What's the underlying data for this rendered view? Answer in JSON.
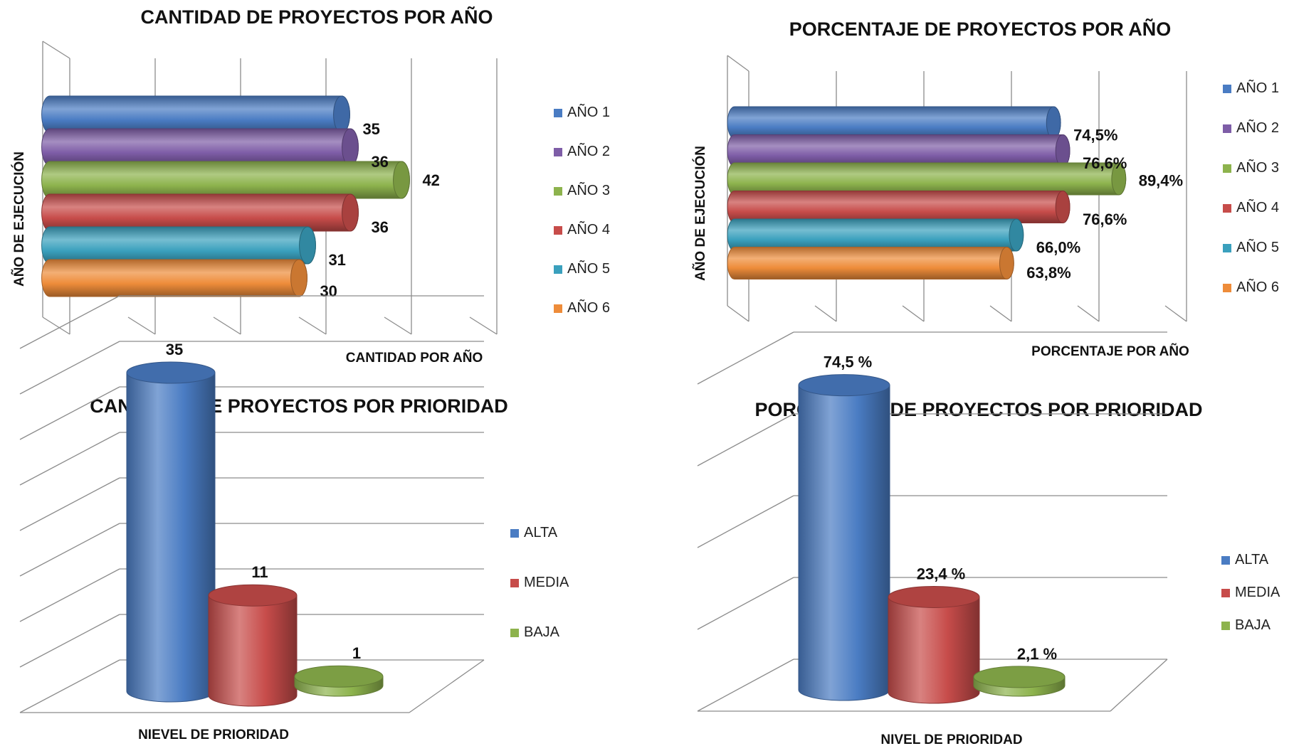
{
  "colors": {
    "blue": "#4a7cc3",
    "purple": "#7e5da7",
    "green": "#8db34d",
    "red": "#c74c4a",
    "teal": "#3aa0bd",
    "orange": "#ee8c3a"
  },
  "chart_data": [
    {
      "type": "bar",
      "orientation": "horizontal",
      "title": "CANTIDAD DE PROYECTOS POR AÑO",
      "xlabel": "CANTIDAD POR AÑO",
      "ylabel": "AÑO DE EJECUCIÓN",
      "categories": [
        "AÑO 1",
        "AÑO 2",
        "AÑO 3",
        "AÑO 4",
        "AÑO 5",
        "AÑO 6"
      ],
      "values": [
        35,
        36,
        42,
        36,
        31,
        30
      ],
      "labels": [
        "35",
        "36",
        "42",
        "36",
        "31",
        "30"
      ],
      "colors": [
        "#4a7cc3",
        "#7e5da7",
        "#8db34d",
        "#c74c4a",
        "#3aa0bd",
        "#ee8c3a"
      ],
      "xlim": [
        0,
        50
      ],
      "legend": "right",
      "grid": true
    },
    {
      "type": "bar",
      "orientation": "horizontal",
      "title": "PORCENTAJE DE PROYECTOS POR AÑO",
      "xlabel": "PORCENTAJE POR AÑO",
      "ylabel": "AÑO DE EJECUCIÓN",
      "categories": [
        "AÑO 1",
        "AÑO 2",
        "AÑO 3",
        "AÑO 4",
        "AÑO 5",
        "AÑO 6"
      ],
      "values": [
        74.5,
        76.6,
        89.4,
        76.6,
        66.0,
        63.8
      ],
      "labels": [
        "74,5%",
        "76,6%",
        "89,4%",
        "76,6%",
        "66,0%",
        "63,8%"
      ],
      "colors": [
        "#4a7cc3",
        "#7e5da7",
        "#8db34d",
        "#c74c4a",
        "#3aa0bd",
        "#ee8c3a"
      ],
      "xlim": [
        0,
        100
      ],
      "legend": "right",
      "grid": true
    },
    {
      "type": "bar",
      "orientation": "vertical",
      "title": "CANTIDAD DE PROYECTOS POR PRIORIDAD",
      "xlabel": "NIEVEL DE PRIORIDAD",
      "ylabel": "",
      "categories": [
        "ALTA",
        "MEDIA",
        "BAJA"
      ],
      "values": [
        35,
        11,
        1
      ],
      "labels": [
        "35",
        "11",
        "1"
      ],
      "colors": [
        "#4a7cc3",
        "#c74c4a",
        "#8db34d"
      ],
      "ylim": [
        0,
        40
      ],
      "legend": "right",
      "grid": true
    },
    {
      "type": "bar",
      "orientation": "vertical",
      "title": "PORCENTAJE DE PROYECTOS POR PRIORIDAD",
      "xlabel": "NIVEL DE PRIORIDAD",
      "ylabel": "",
      "categories": [
        "ALTA",
        "MEDIA",
        "BAJA"
      ],
      "values": [
        74.5,
        23.4,
        2.1
      ],
      "labels": [
        "74,5 %",
        "23,4 %",
        "2,1 %"
      ],
      "colors": [
        "#4a7cc3",
        "#c74c4a",
        "#8db34d"
      ],
      "ylim": [
        0,
        80
      ],
      "legend": "right",
      "grid": true
    }
  ]
}
